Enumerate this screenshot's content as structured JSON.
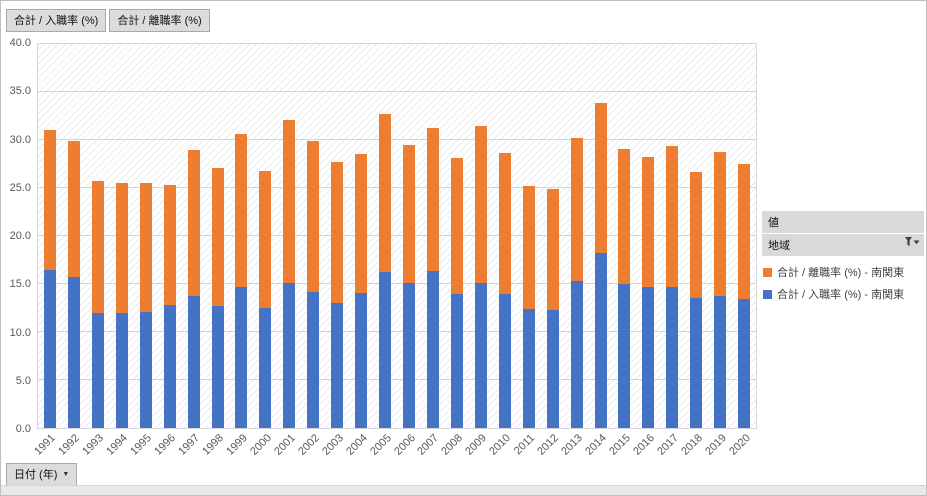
{
  "field_buttons": {
    "hire_rate": "合計 / 入職率 (%)",
    "separation_rate": "合計 / 離職率 (%)"
  },
  "axis_field": {
    "label": "日付 (年)"
  },
  "icons": {
    "dropdown": "▼"
  },
  "legend_panel": {
    "value_header": "値",
    "region_header": "地域",
    "items": [
      {
        "label": "合計 / 離職率 (%) - 南関東",
        "color": "#ED7D31"
      },
      {
        "label": "合計 / 入職率 (%) - 南関東",
        "color": "#4472C4"
      }
    ]
  },
  "chart_data": {
    "type": "bar",
    "stacked": true,
    "title": "",
    "xlabel": "",
    "ylabel": "",
    "ylim": [
      0,
      40
    ],
    "ytick_step": 5,
    "legend_position": "right",
    "grid": "horizontal",
    "categories": [
      "1991",
      "1992",
      "1993",
      "1994",
      "1995",
      "1996",
      "1997",
      "1998",
      "1999",
      "2000",
      "2001",
      "2002",
      "2003",
      "2004",
      "2005",
      "2006",
      "2007",
      "2008",
      "2009",
      "2010",
      "2011",
      "2012",
      "2013",
      "2014",
      "2015",
      "2016",
      "2017",
      "2018",
      "2019",
      "2020"
    ],
    "series": [
      {
        "name": "合計 / 入職率 (%) - 南関東",
        "color": "#4472C4",
        "values": [
          16.5,
          15.7,
          12.0,
          12.0,
          12.1,
          12.8,
          13.8,
          12.7,
          14.7,
          12.5,
          15.1,
          14.2,
          13.0,
          14.1,
          16.2,
          15.1,
          16.4,
          14.0,
          15.1,
          14.0,
          12.4,
          12.3,
          15.3,
          18.2,
          15.0,
          14.7,
          14.7,
          13.5,
          13.8,
          13.4
        ]
      },
      {
        "name": "合計 / 離職率 (%) - 南関東",
        "color": "#ED7D31",
        "values": [
          14.5,
          14.2,
          13.7,
          13.5,
          13.4,
          12.5,
          15.2,
          14.4,
          15.9,
          14.3,
          17.0,
          15.7,
          14.7,
          14.4,
          16.5,
          14.4,
          14.9,
          14.1,
          16.4,
          14.6,
          12.8,
          12.6,
          14.9,
          15.7,
          14.1,
          13.5,
          14.7,
          13.2,
          15.0,
          14.1
        ]
      }
    ]
  }
}
